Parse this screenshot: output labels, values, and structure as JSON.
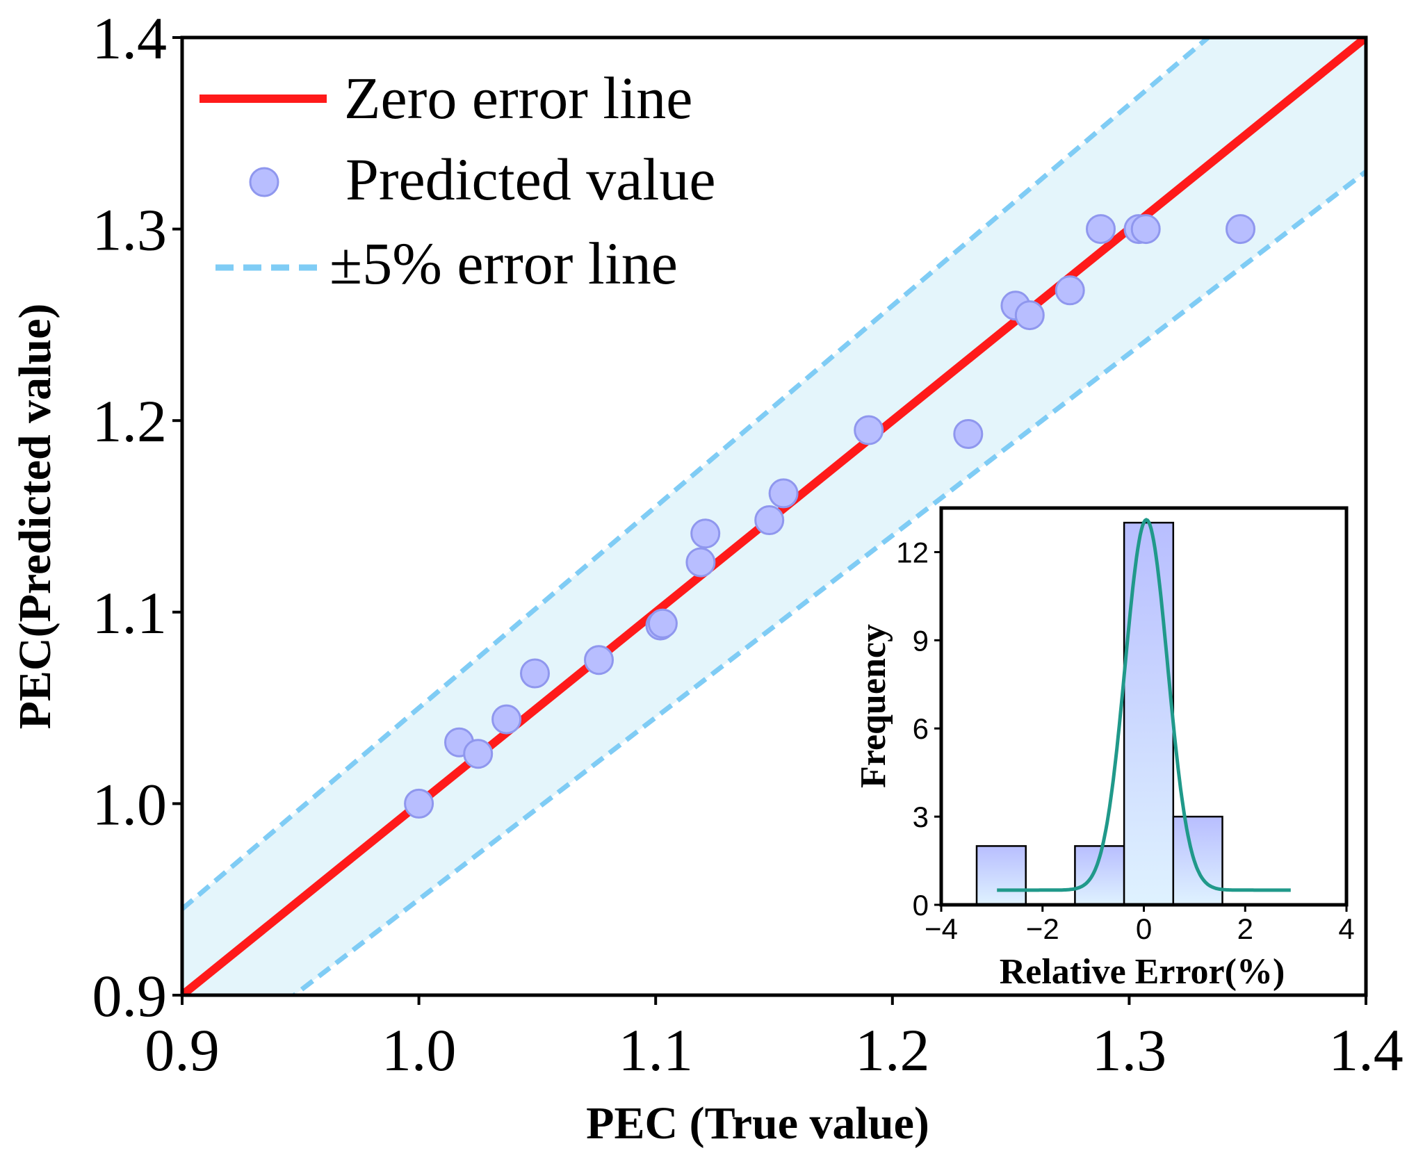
{
  "chart_data": [
    {
      "type": "scatter",
      "xlabel": "PEC (True value)",
      "ylabel": "PEC(Predicted value)",
      "xlim": [
        0.9,
        1.4
      ],
      "ylim": [
        0.9,
        1.4
      ],
      "xticks": [
        "0.9",
        "1.0",
        "1.1",
        "1.2",
        "1.3",
        "1.4"
      ],
      "yticks": [
        "0.9",
        "1.0",
        "1.1",
        "1.2",
        "1.3",
        "1.4"
      ],
      "xtick_values": [
        0.9,
        1.0,
        1.1,
        1.2,
        1.3,
        1.4
      ],
      "ytick_values": [
        0.9,
        1.0,
        1.1,
        1.2,
        1.3,
        1.4
      ],
      "error_band_fraction": 0.05,
      "legend_position": "top-left",
      "legend": {
        "zero_line": "Zero error line",
        "predicted": "Predicted value",
        "error_line": "±5% error line"
      },
      "colors": {
        "zero_line": "#ff1a1a",
        "points_fill": "#b8beff",
        "points_edge": "#8f97ee",
        "band_fill": "#e4f5fb",
        "error_line": "#7fccf5"
      },
      "points": [
        {
          "x": 1.0,
          "y": 1.0
        },
        {
          "x": 1.017,
          "y": 1.032
        },
        {
          "x": 1.025,
          "y": 1.026
        },
        {
          "x": 1.037,
          "y": 1.044
        },
        {
          "x": 1.049,
          "y": 1.068
        },
        {
          "x": 1.076,
          "y": 1.075
        },
        {
          "x": 1.102,
          "y": 1.093
        },
        {
          "x": 1.103,
          "y": 1.094
        },
        {
          "x": 1.119,
          "y": 1.126
        },
        {
          "x": 1.121,
          "y": 1.141
        },
        {
          "x": 1.148,
          "y": 1.148
        },
        {
          "x": 1.154,
          "y": 1.162
        },
        {
          "x": 1.19,
          "y": 1.195
        },
        {
          "x": 1.232,
          "y": 1.193
        },
        {
          "x": 1.252,
          "y": 1.26
        },
        {
          "x": 1.258,
          "y": 1.255
        },
        {
          "x": 1.275,
          "y": 1.268
        },
        {
          "x": 1.288,
          "y": 1.3
        },
        {
          "x": 1.304,
          "y": 1.3
        },
        {
          "x": 1.307,
          "y": 1.3
        },
        {
          "x": 1.347,
          "y": 1.3
        }
      ]
    },
    {
      "type": "bar",
      "title": "",
      "xlabel": "Relative Error(%)",
      "ylabel": "Frequency",
      "xlim": [
        -4,
        4
      ],
      "ylim": [
        0,
        13.5
      ],
      "xticks": [
        "−4",
        "−2",
        "0",
        "2",
        "4"
      ],
      "xtick_values": [
        -4,
        -2,
        0,
        2,
        4
      ],
      "yticks": [
        "0",
        "3",
        "6",
        "9",
        "12"
      ],
      "ytick_values": [
        0,
        3,
        6,
        9,
        12
      ],
      "bins": [
        {
          "from": -3.3,
          "to": -2.33,
          "count": 2
        },
        {
          "from": -2.33,
          "to": -1.36,
          "count": 0
        },
        {
          "from": -1.36,
          "to": -0.39,
          "count": 2
        },
        {
          "from": -0.39,
          "to": 0.58,
          "count": 13
        },
        {
          "from": 0.58,
          "to": 1.55,
          "count": 3
        }
      ],
      "fit_curve": {
        "type": "gaussian",
        "mean": 0.05,
        "sigma": 0.42,
        "baseline": 0.5,
        "peak": 13.1,
        "x_range": [
          -2.9,
          2.9
        ],
        "color": "#20998a"
      },
      "colors": {
        "bar_top": "#b8beff",
        "bar_bottom": "#dff2ff",
        "bar_edge": "#000000"
      }
    }
  ]
}
